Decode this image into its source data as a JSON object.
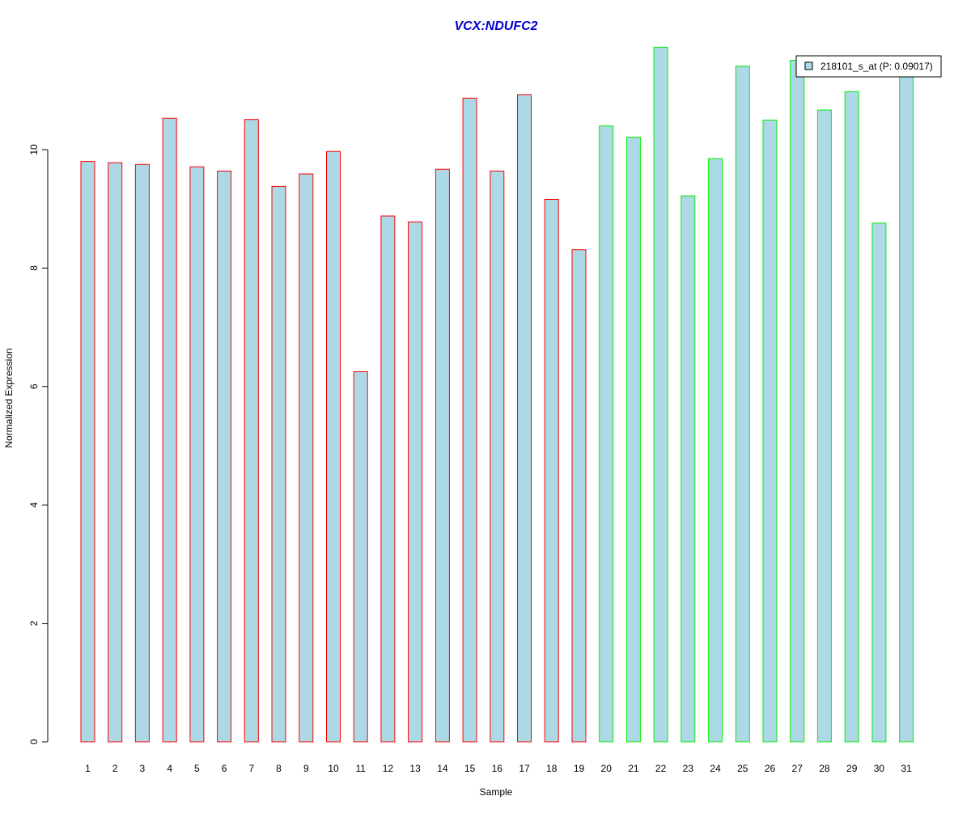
{
  "chart_data": {
    "type": "bar",
    "title": "VCX:NDUFC2",
    "xlabel": "Sample",
    "ylabel": "Normalized Expression",
    "ylim": [
      0,
      11.8
    ],
    "yticks": [
      0,
      2,
      4,
      6,
      8,
      10
    ],
    "grid": false,
    "legend_placement": "top-right",
    "categories": [
      "1",
      "2",
      "3",
      "4",
      "5",
      "6",
      "7",
      "8",
      "9",
      "10",
      "11",
      "12",
      "13",
      "14",
      "15",
      "16",
      "17",
      "18",
      "19",
      "20",
      "21",
      "22",
      "23",
      "24",
      "25",
      "26",
      "27",
      "28",
      "29",
      "30",
      "31"
    ],
    "series": [
      {
        "name": "218101_s_at (P: 0.09017)",
        "values": [
          9.8,
          9.78,
          9.75,
          10.53,
          9.71,
          9.64,
          10.51,
          9.38,
          9.59,
          9.97,
          6.25,
          8.88,
          8.78,
          9.67,
          10.87,
          9.64,
          10.93,
          9.16,
          8.31,
          10.4,
          10.21,
          11.73,
          9.22,
          9.85,
          11.41,
          10.5,
          11.51,
          10.67,
          10.98,
          8.76,
          11.28
        ],
        "groups": [
          "a",
          "a",
          "a",
          "a",
          "a",
          "a",
          "a",
          "a",
          "a",
          "a",
          "a",
          "a",
          "a",
          "a",
          "a",
          "a",
          "a",
          "a",
          "a",
          "b",
          "b",
          "b",
          "b",
          "b",
          "b",
          "b",
          "b",
          "b",
          "b",
          "b",
          "b"
        ]
      }
    ],
    "colors": {
      "bar_fill": "#add8e6",
      "group_a_border": "#ff0000",
      "group_b_border": "#00ee00",
      "title": "#0000cc",
      "axis": "#000000",
      "legend_border": "#000000"
    }
  }
}
